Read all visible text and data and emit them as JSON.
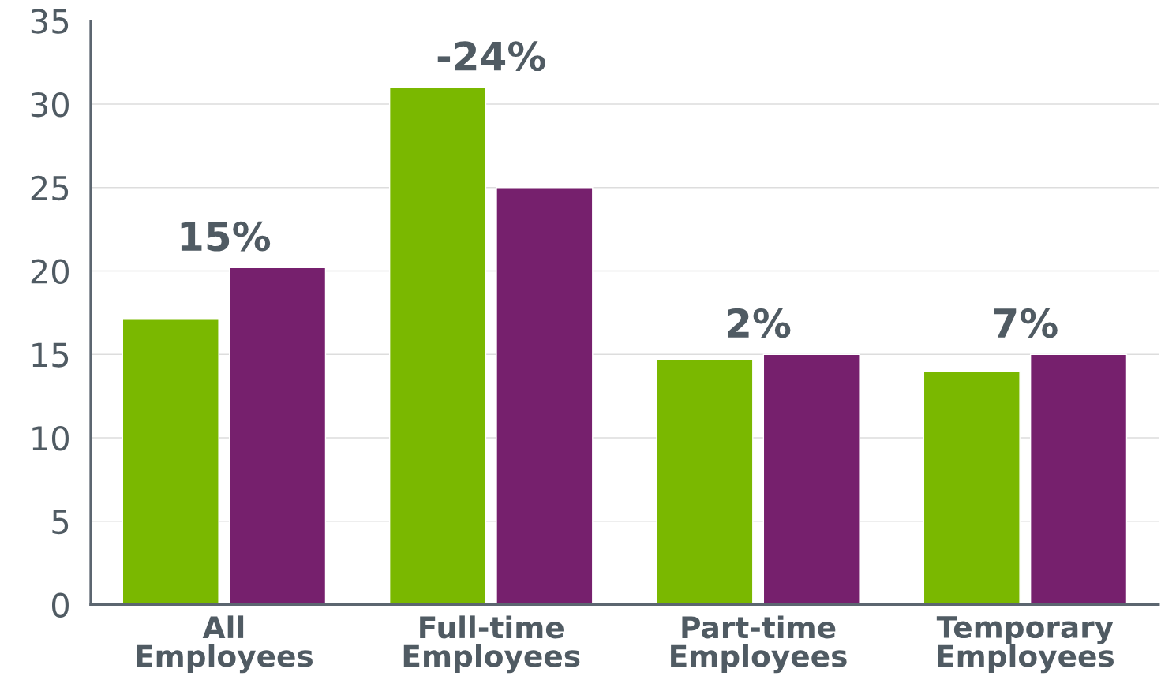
{
  "chart_data": {
    "type": "bar",
    "categories": [
      "All\nEmployees",
      "Full-time\nEmployees",
      "Part-time\nEmployees",
      "Temporary\nEmployees"
    ],
    "series": [
      {
        "color": "#7ab800",
        "values": [
          17.1,
          31.0,
          14.7,
          14.0
        ]
      },
      {
        "color": "#76206d",
        "values": [
          20.2,
          25.0,
          15.0,
          15.0
        ]
      }
    ],
    "ylim": [
      0,
      35
    ],
    "yticks": [
      0,
      5,
      10,
      15,
      20,
      25,
      30,
      35
    ],
    "grid": "y",
    "legend": false,
    "annotations": [
      "15%",
      "-24%",
      "2%",
      "7%"
    ]
  }
}
